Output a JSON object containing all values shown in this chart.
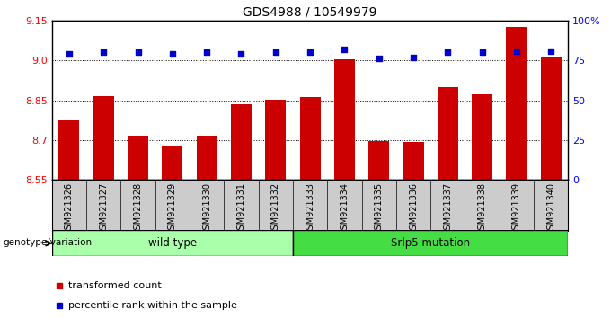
{
  "title": "GDS4988 / 10549979",
  "samples": [
    "GSM921326",
    "GSM921327",
    "GSM921328",
    "GSM921329",
    "GSM921330",
    "GSM921331",
    "GSM921332",
    "GSM921333",
    "GSM921334",
    "GSM921335",
    "GSM921336",
    "GSM921337",
    "GSM921338",
    "GSM921339",
    "GSM921340"
  ],
  "bar_values": [
    8.775,
    8.865,
    8.715,
    8.675,
    8.715,
    8.835,
    8.852,
    8.862,
    9.005,
    8.695,
    8.694,
    8.9,
    8.872,
    9.125,
    9.01
  ],
  "dot_values": [
    79,
    80,
    80,
    79,
    80,
    79,
    80,
    80,
    82,
    76,
    77,
    80,
    80,
    81,
    81
  ],
  "bar_color": "#cc0000",
  "dot_color": "#0000cc",
  "ylim_left": [
    8.55,
    9.15
  ],
  "ylim_right": [
    0,
    100
  ],
  "yticks_left": [
    8.55,
    8.7,
    8.85,
    9.0,
    9.15
  ],
  "yticks_right": [
    0,
    25,
    50,
    75,
    100
  ],
  "ytick_labels_right": [
    "0",
    "25",
    "50",
    "75",
    "100%"
  ],
  "grid_vals": [
    9.0,
    8.85,
    8.7
  ],
  "wild_type_count": 7,
  "mutation_count": 8,
  "wild_type_label": "wild type",
  "mutation_label": "Srlp5 mutation",
  "genotype_label": "genotype/variation",
  "legend_bar_label": "transformed count",
  "legend_dot_label": "percentile rank within the sample",
  "wt_box_color": "#aaffaa",
  "mut_box_color": "#44dd44",
  "xtick_bg_color": "#cccccc",
  "title_fontsize": 10,
  "tick_fontsize": 8,
  "bar_fontsize": 7
}
